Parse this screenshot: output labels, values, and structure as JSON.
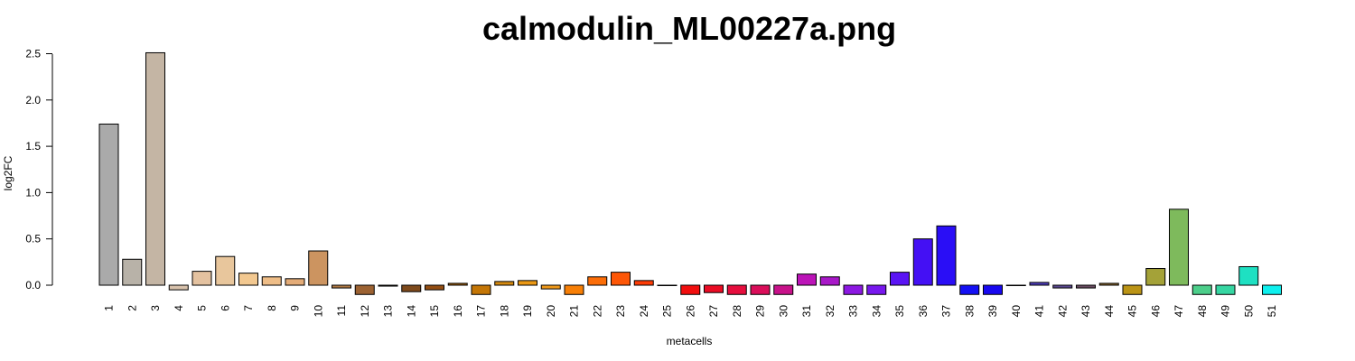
{
  "chart_data": {
    "type": "bar",
    "title": "calmodulin_ML00227a.png",
    "xlabel": "metacells",
    "ylabel": "log2FC",
    "ylim": [
      0,
      2.5
    ],
    "yticks": [
      "0.0",
      "0.5",
      "1.0",
      "1.5",
      "2.0",
      "2.5"
    ],
    "grid": false,
    "categories": [
      "1",
      "2",
      "3",
      "4",
      "5",
      "6",
      "7",
      "8",
      "9",
      "10",
      "11",
      "12",
      "13",
      "14",
      "15",
      "16",
      "17",
      "18",
      "19",
      "20",
      "21",
      "22",
      "23",
      "24",
      "25",
      "26",
      "27",
      "28",
      "29",
      "30",
      "31",
      "32",
      "33",
      "34",
      "35",
      "36",
      "37",
      "38",
      "39",
      "40",
      "41",
      "42",
      "43",
      "44",
      "45",
      "46",
      "47",
      "48",
      "49",
      "50",
      "51"
    ],
    "values": [
      1.74,
      0.28,
      2.51,
      -0.05,
      0.15,
      0.31,
      0.13,
      0.09,
      0.07,
      0.37,
      -0.03,
      -0.1,
      -0.01,
      -0.07,
      -0.05,
      0.02,
      -0.1,
      0.04,
      0.05,
      -0.04,
      -0.1,
      0.09,
      0.14,
      0.05,
      0.0,
      -0.1,
      -0.08,
      -0.1,
      -0.1,
      -0.1,
      0.12,
      0.09,
      -0.1,
      -0.1,
      0.14,
      0.5,
      0.64,
      -0.1,
      -0.1,
      0.0,
      0.03,
      -0.03,
      -0.03,
      0.02,
      -0.1,
      0.18,
      0.82,
      -0.1,
      -0.1,
      0.2,
      -0.1
    ],
    "colors": [
      "#aaaaaa",
      "#b8b2a8",
      "#c4b5a4",
      "#d8c2ac",
      "#e4c2a0",
      "#e8c69c",
      "#f2c890",
      "#eebd87",
      "#e4ac78",
      "#cc9460",
      "#b07a44",
      "#9c6232",
      "#8a5022",
      "#7e4a1c",
      "#944e12",
      "#a4600a",
      "#c47606",
      "#d58a10",
      "#ea9814",
      "#f19a1a",
      "#f77f06",
      "#fb6d08",
      "#fd5606",
      "#fd3c06",
      "#f81c0a",
      "#f10e0e",
      "#ea0c24",
      "#e60e3e",
      "#da0e5a",
      "#c8128a",
      "#bc14b8",
      "#a818c8",
      "#8c18e2",
      "#7818ee",
      "#5a14f4",
      "#4410f4",
      "#2a0ef6",
      "#1410f4",
      "#1808f0",
      "#3024e0",
      "#4c3cb8",
      "#5a4890",
      "#6a4c62",
      "#8e6a2c",
      "#bb9416",
      "#a4a238",
      "#7eba5c",
      "#4cce8a",
      "#36d6a2",
      "#1ee0c2",
      "#0ef0ee"
    ]
  }
}
